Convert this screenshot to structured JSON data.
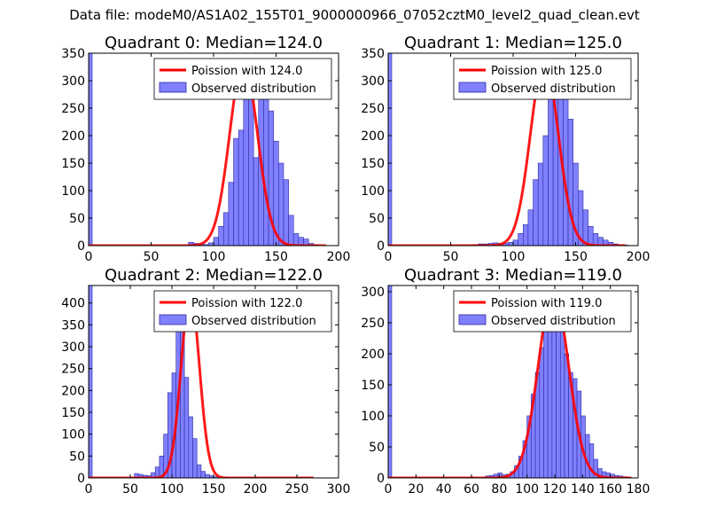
{
  "suptitle": "Data file: modeM0/AS1A02_155T01_9000000966_07052cztM0_level2_quad_clean.evt",
  "colors": {
    "hist_fill": "#8080ff",
    "hist_edge": "#2a2aa0",
    "poisson_line": "#ff0000"
  },
  "chart_data": [
    {
      "type": "bar",
      "title": "Quadrant 0: Median=124.0",
      "legend": [
        "Poission with 124.0",
        "Observed distribution"
      ],
      "legend_position": "top-right",
      "xlim": [
        0,
        200
      ],
      "ylim": [
        0,
        350
      ],
      "xticks": [
        0,
        50,
        100,
        150,
        200
      ],
      "yticks": [
        0,
        50,
        100,
        150,
        200,
        250,
        300,
        350
      ],
      "median": 124.0,
      "poisson_peak": 335,
      "bin_width": 4,
      "bin_start": 80,
      "values": [
        6,
        4,
        3,
        2,
        5,
        15,
        35,
        60,
        115,
        195,
        210,
        270,
        320,
        160,
        300,
        290,
        245,
        190,
        150,
        120,
        55,
        22,
        15,
        12,
        4,
        2,
        0,
        0
      ],
      "outliers": [
        {
          "x": 0,
          "y": 350
        }
      ],
      "poisson_x_range": [
        0,
        190
      ]
    },
    {
      "type": "bar",
      "title": "Quadrant 1: Median=125.0",
      "legend": [
        "Poission with 125.0",
        "Observed distribution"
      ],
      "legend_position": "top-right",
      "xlim": [
        0,
        200
      ],
      "ylim": [
        0,
        350
      ],
      "xticks": [
        0,
        50,
        100,
        150,
        200
      ],
      "yticks": [
        0,
        50,
        100,
        150,
        200,
        250,
        300,
        350
      ],
      "median": 125.0,
      "poisson_peak": 335,
      "bin_width": 4,
      "bin_start": 68,
      "values": [
        2,
        3,
        3,
        4,
        5,
        4,
        4,
        6,
        10,
        22,
        38,
        65,
        120,
        150,
        200,
        270,
        340,
        300,
        270,
        230,
        150,
        100,
        65,
        35,
        22,
        15,
        10,
        6,
        3,
        2,
        1
      ],
      "outliers": [
        {
          "x": 0,
          "y": 350
        }
      ],
      "poisson_x_range": [
        0,
        190
      ]
    },
    {
      "type": "bar",
      "title": "Quadrant 2: Median=122.0",
      "legend": [
        "Poission with 122.0",
        "Observed distribution"
      ],
      "legend_position": "top-right",
      "xlim": [
        0,
        300
      ],
      "ylim": [
        0,
        440
      ],
      "xticks": [
        0,
        50,
        100,
        150,
        200,
        250,
        300
      ],
      "yticks": [
        0,
        50,
        100,
        150,
        200,
        250,
        300,
        350,
        400
      ],
      "median": 122.0,
      "poisson_peak": 420,
      "bin_width": 5,
      "bin_start": 55,
      "values": [
        10,
        8,
        6,
        5,
        12,
        25,
        50,
        100,
        195,
        240,
        425,
        360,
        230,
        140,
        90,
        30,
        15,
        8,
        5,
        3
      ],
      "outliers": [
        {
          "x": 0,
          "y": 440
        }
      ],
      "poisson_x_range": [
        0,
        270
      ]
    },
    {
      "type": "bar",
      "title": "Quadrant 3: Median=119.0",
      "legend": [
        "Poission with 119.0",
        "Observed distribution"
      ],
      "legend_position": "top-right",
      "xlim": [
        0,
        180
      ],
      "ylim": [
        0,
        310
      ],
      "xticks": [
        0,
        20,
        40,
        60,
        80,
        100,
        120,
        140,
        160,
        180
      ],
      "yticks": [
        0,
        50,
        100,
        150,
        200,
        250,
        300
      ],
      "median": 119.0,
      "poisson_peak": 300,
      "bin_width": 3,
      "bin_start": 70,
      "values": [
        3,
        4,
        6,
        8,
        5,
        6,
        10,
        20,
        35,
        60,
        100,
        135,
        170,
        210,
        270,
        300,
        280,
        270,
        240,
        200,
        170,
        160,
        140,
        100,
        70,
        55,
        30,
        15,
        10,
        8,
        6,
        4,
        3,
        2,
        1
      ],
      "outliers": [
        {
          "x": 0,
          "y": 310
        }
      ],
      "poisson_x_range": [
        0,
        175
      ]
    }
  ]
}
